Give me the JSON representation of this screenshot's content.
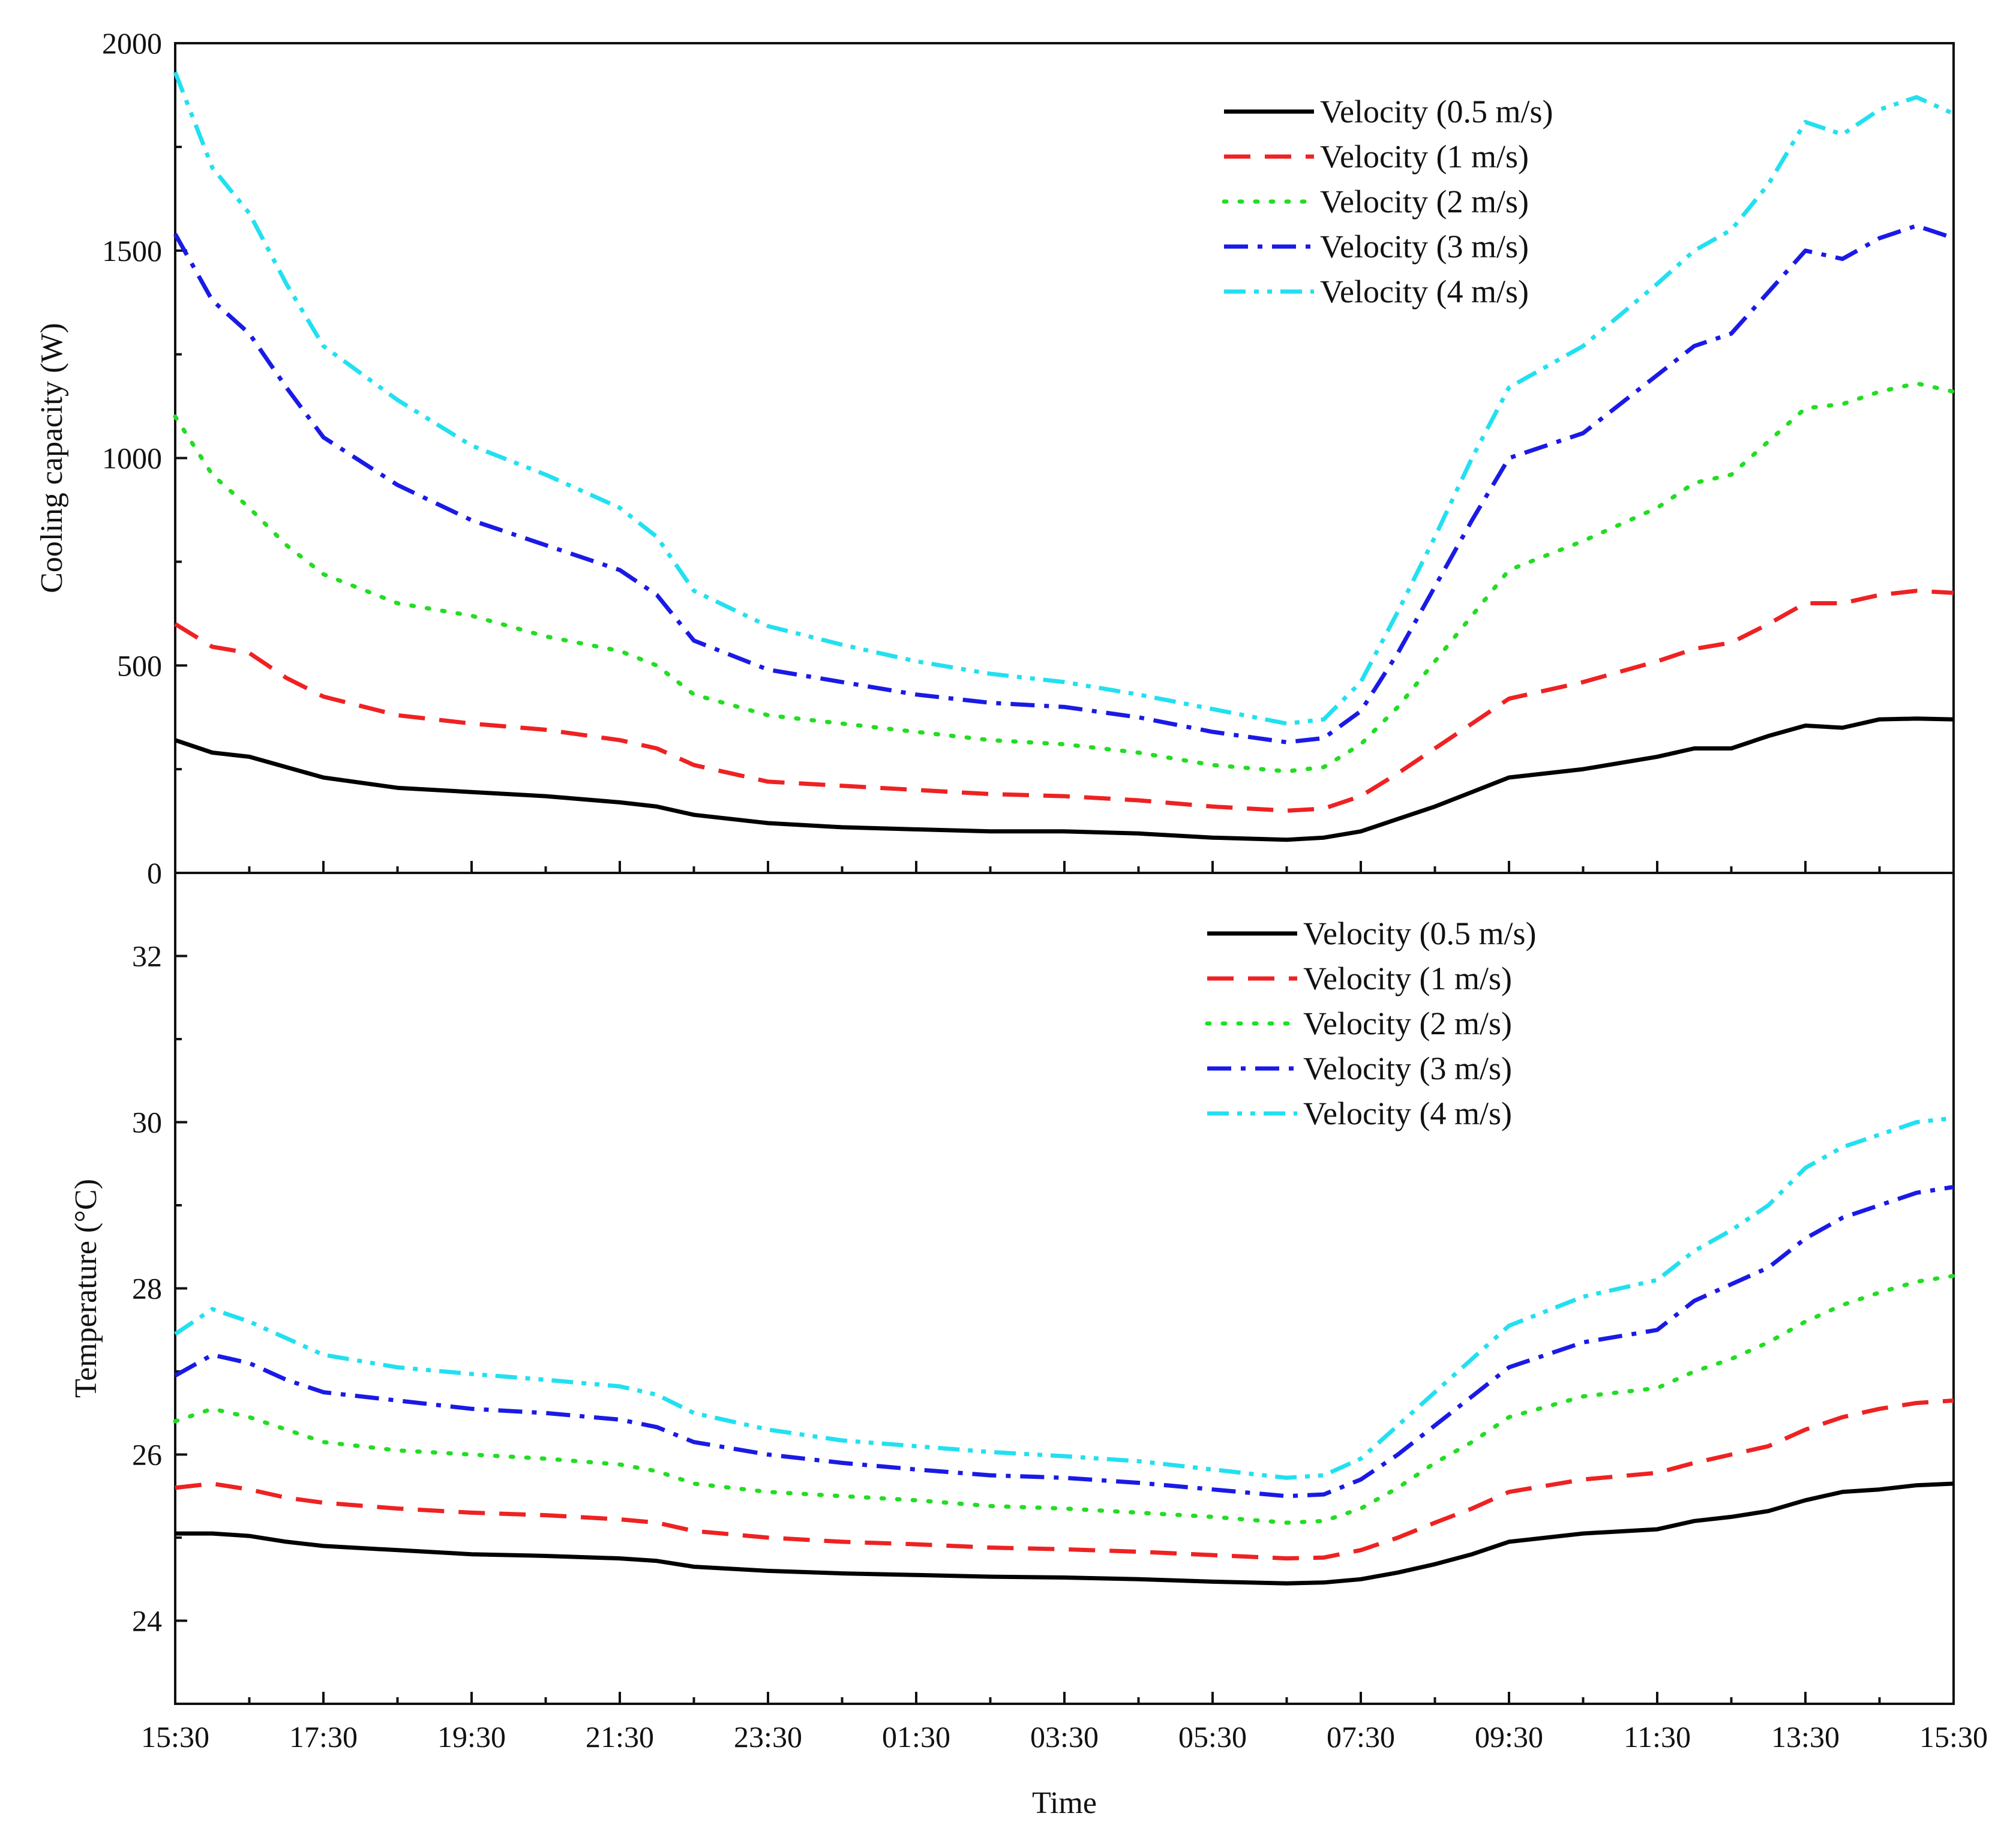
{
  "chart_data": [
    {
      "type": "line",
      "title": "",
      "xlabel": "Time",
      "ylabel": "Cooling capacity (W)",
      "ylim": [
        0,
        2000
      ],
      "yticks": [
        "0",
        "500",
        "1000",
        "1500",
        "2000"
      ],
      "xticks": [
        "15:30",
        "17:30",
        "19:30",
        "21:30",
        "23:30",
        "01:30",
        "03:30",
        "05:30",
        "07:30",
        "09:30",
        "11:30",
        "13:30",
        "15:30"
      ],
      "x_hours": [
        0,
        0.5,
        1,
        1.5,
        2,
        3,
        4,
        5,
        6,
        6.5,
        7,
        8,
        9,
        10,
        11,
        12,
        13,
        14,
        15,
        15.5,
        16,
        16.5,
        17,
        17.5,
        18,
        19,
        20,
        20.5,
        21,
        21.5,
        22,
        22.5,
        23,
        23.5,
        24
      ],
      "legend_position": "top-right",
      "series": [
        {
          "name": "Velocity (0.5 m/s)",
          "color": "#000000",
          "dash": "solid",
          "values": [
            320,
            290,
            280,
            255,
            230,
            205,
            195,
            185,
            170,
            160,
            140,
            120,
            110,
            105,
            100,
            100,
            95,
            85,
            80,
            85,
            100,
            130,
            160,
            195,
            230,
            250,
            280,
            300,
            300,
            330,
            355,
            350,
            370,
            372,
            370
          ]
        },
        {
          "name": "Velocity (1 m/s)",
          "color": "#ee2222",
          "dash": "dashed",
          "values": [
            600,
            545,
            530,
            470,
            425,
            380,
            360,
            345,
            320,
            300,
            260,
            220,
            210,
            200,
            190,
            185,
            175,
            160,
            150,
            155,
            185,
            240,
            300,
            360,
            420,
            460,
            510,
            540,
            555,
            600,
            650,
            650,
            670,
            680,
            675
          ]
        },
        {
          "name": "Velocity (2 m/s)",
          "color": "#22dd22",
          "dash": "dotted",
          "values": [
            1100,
            960,
            880,
            790,
            720,
            650,
            620,
            570,
            535,
            500,
            430,
            380,
            360,
            340,
            320,
            310,
            290,
            260,
            245,
            255,
            310,
            400,
            510,
            620,
            730,
            800,
            880,
            940,
            960,
            1040,
            1120,
            1130,
            1160,
            1180,
            1160
          ]
        },
        {
          "name": "Velocity (3 m/s)",
          "color": "#1a1ae6",
          "dash": "dashdot",
          "values": [
            1540,
            1380,
            1300,
            1170,
            1050,
            935,
            850,
            790,
            730,
            670,
            560,
            490,
            460,
            430,
            410,
            400,
            375,
            340,
            315,
            325,
            390,
            530,
            690,
            850,
            1000,
            1060,
            1200,
            1270,
            1300,
            1400,
            1500,
            1480,
            1530,
            1560,
            1530
          ]
        },
        {
          "name": "Velocity (4 m/s)",
          "color": "#22e0f0",
          "dash": "dashdotdot",
          "values": [
            1930,
            1700,
            1590,
            1420,
            1270,
            1140,
            1030,
            960,
            880,
            810,
            680,
            595,
            550,
            510,
            480,
            460,
            430,
            395,
            360,
            370,
            460,
            630,
            810,
            1000,
            1170,
            1270,
            1420,
            1500,
            1550,
            1660,
            1810,
            1780,
            1840,
            1870,
            1830
          ]
        }
      ]
    },
    {
      "type": "line",
      "title": "",
      "xlabel": "Time",
      "ylabel": "Temperature (°C)",
      "ylim": [
        23,
        33
      ],
      "yticks": [
        "24",
        "26",
        "28",
        "30",
        "32"
      ],
      "xticks": [
        "15:30",
        "17:30",
        "19:30",
        "21:30",
        "23:30",
        "01:30",
        "03:30",
        "05:30",
        "07:30",
        "09:30",
        "11:30",
        "13:30",
        "15:30"
      ],
      "x_hours": [
        0,
        0.5,
        1,
        1.5,
        2,
        3,
        4,
        5,
        6,
        6.5,
        7,
        8,
        9,
        10,
        11,
        12,
        13,
        14,
        15,
        15.5,
        16,
        16.5,
        17,
        17.5,
        18,
        19,
        20,
        20.5,
        21,
        21.5,
        22,
        22.5,
        23,
        23.5,
        24
      ],
      "legend_position": "top-right",
      "series": [
        {
          "name": "Velocity (0.5 m/s)",
          "color": "#000000",
          "dash": "solid",
          "values": [
            25.05,
            25.05,
            25.02,
            24.95,
            24.9,
            24.85,
            24.8,
            24.78,
            24.75,
            24.72,
            24.65,
            24.6,
            24.57,
            24.55,
            24.53,
            24.52,
            24.5,
            24.47,
            24.45,
            24.46,
            24.5,
            24.58,
            24.68,
            24.8,
            24.95,
            25.05,
            25.1,
            25.2,
            25.25,
            25.32,
            25.45,
            25.55,
            25.58,
            25.63,
            25.65
          ]
        },
        {
          "name": "Velocity (1 m/s)",
          "color": "#ee2222",
          "dash": "dashed",
          "values": [
            25.6,
            25.65,
            25.58,
            25.48,
            25.42,
            25.35,
            25.3,
            25.27,
            25.22,
            25.18,
            25.08,
            25.0,
            24.95,
            24.92,
            24.88,
            24.86,
            24.83,
            24.79,
            24.75,
            24.76,
            24.85,
            25.0,
            25.18,
            25.35,
            25.55,
            25.7,
            25.78,
            25.9,
            26.0,
            26.1,
            26.3,
            26.45,
            26.55,
            26.62,
            26.65
          ]
        },
        {
          "name": "Velocity (2 m/s)",
          "color": "#22dd22",
          "dash": "dotted",
          "values": [
            26.4,
            26.55,
            26.45,
            26.3,
            26.15,
            26.05,
            26.0,
            25.95,
            25.88,
            25.8,
            25.65,
            25.55,
            25.5,
            25.45,
            25.38,
            25.35,
            25.3,
            25.25,
            25.18,
            25.2,
            25.35,
            25.6,
            25.9,
            26.15,
            26.45,
            26.7,
            26.8,
            27.0,
            27.15,
            27.35,
            27.6,
            27.8,
            27.95,
            28.08,
            28.15
          ]
        },
        {
          "name": "Velocity (3 m/s)",
          "color": "#1a1ae6",
          "dash": "dashdot",
          "values": [
            26.95,
            27.2,
            27.1,
            26.9,
            26.75,
            26.65,
            26.55,
            26.5,
            26.42,
            26.33,
            26.15,
            26.0,
            25.9,
            25.82,
            25.75,
            25.72,
            25.66,
            25.58,
            25.5,
            25.52,
            25.7,
            26.0,
            26.35,
            26.7,
            27.05,
            27.35,
            27.5,
            27.85,
            28.05,
            28.25,
            28.6,
            28.85,
            29.0,
            29.15,
            29.22
          ]
        },
        {
          "name": "Velocity (4 m/s)",
          "color": "#22e0f0",
          "dash": "dashdotdot",
          "values": [
            27.45,
            27.75,
            27.6,
            27.4,
            27.2,
            27.05,
            26.97,
            26.9,
            26.82,
            26.72,
            26.5,
            26.3,
            26.17,
            26.1,
            26.03,
            25.98,
            25.92,
            25.82,
            25.72,
            25.75,
            25.95,
            26.35,
            26.75,
            27.15,
            27.55,
            27.9,
            28.1,
            28.45,
            28.7,
            29.0,
            29.45,
            29.7,
            29.85,
            30.0,
            30.05
          ]
        }
      ]
    }
  ]
}
